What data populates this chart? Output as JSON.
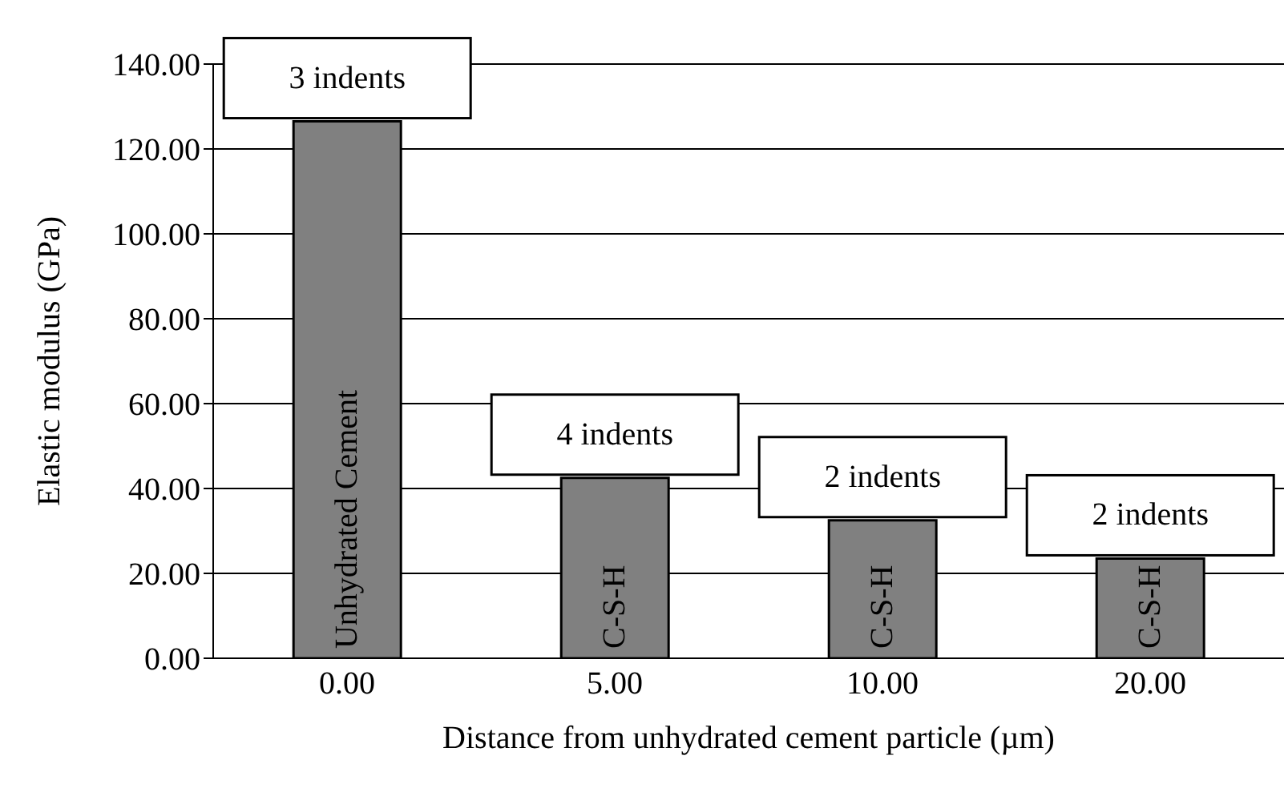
{
  "chart_data": {
    "type": "bar",
    "xlabel": "Distance from unhydrated cement particle (µm)",
    "ylabel": "Elastic modulus (GPa)",
    "categories": [
      "0.00",
      "5.00",
      "10.00",
      "20.00"
    ],
    "values": [
      126.5,
      42.5,
      32.5,
      23.5
    ],
    "color": "#808080",
    "ylim": [
      0,
      140
    ],
    "yticks": [
      {
        "value": 0,
        "label": "0.00"
      },
      {
        "value": 20,
        "label": "20.00"
      },
      {
        "value": 40,
        "label": "40.00"
      },
      {
        "value": 60,
        "label": "60.00"
      },
      {
        "value": 80,
        "label": "80.00"
      },
      {
        "value": 100,
        "label": "100.00"
      },
      {
        "value": 120,
        "label": "120.00"
      },
      {
        "value": 140,
        "label": "140.00"
      }
    ],
    "grid": "y",
    "annotations": [
      "3 indents",
      "4 indents",
      "2 indents",
      "2 indents",
      "Unhydrated Cement",
      "C-S-H",
      "C-S-H",
      "C-S-H"
    ]
  }
}
